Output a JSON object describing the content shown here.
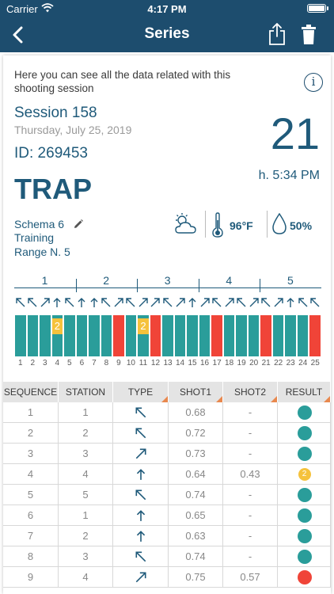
{
  "status_bar": {
    "carrier": "Carrier",
    "time": "4:17 PM"
  },
  "nav": {
    "title": "Series",
    "back_icon": "chevron-left-icon",
    "share_icon": "share-icon",
    "trash_icon": "trash-icon"
  },
  "intro": "Here you can see all the data related with this shooting session",
  "session": {
    "name": "Session 158",
    "date": "Thursday, July 25, 2019",
    "id": "ID: 269453",
    "number": "21",
    "hour": "h. 5:34 PM",
    "discipline": "TRAP",
    "schema": "Schema 6",
    "type": "Training",
    "range": "Range N. 5"
  },
  "weather": {
    "icon": "partly-cloudy-icon",
    "temperature": "96°F",
    "humidity": "50%"
  },
  "stations": [
    "1",
    "2",
    "3",
    "4",
    "5"
  ],
  "shot_numbers": [
    "1",
    "2",
    "3",
    "4",
    "5",
    "6",
    "7",
    "8",
    "9",
    "10",
    "11",
    "12",
    "13",
    "14",
    "15",
    "16",
    "17",
    "18",
    "19",
    "20",
    "21",
    "22",
    "23",
    "24",
    "25"
  ],
  "shots": [
    {
      "dir": "up-left",
      "result": "hit"
    },
    {
      "dir": "up-left",
      "result": "hit"
    },
    {
      "dir": "up-right",
      "result": "hit"
    },
    {
      "dir": "up",
      "result": "second",
      "badge": "2"
    },
    {
      "dir": "up-left",
      "result": "hit"
    },
    {
      "dir": "up",
      "result": "hit"
    },
    {
      "dir": "up",
      "result": "hit"
    },
    {
      "dir": "up-left",
      "result": "hit"
    },
    {
      "dir": "up-right",
      "result": "miss"
    },
    {
      "dir": "up-left",
      "result": "hit"
    },
    {
      "dir": "up-right",
      "result": "second",
      "badge": "2"
    },
    {
      "dir": "up-right",
      "result": "miss"
    },
    {
      "dir": "up-left",
      "result": "hit"
    },
    {
      "dir": "up-right",
      "result": "hit"
    },
    {
      "dir": "up",
      "result": "hit"
    },
    {
      "dir": "up-right",
      "result": "hit"
    },
    {
      "dir": "up-left",
      "result": "miss"
    },
    {
      "dir": "up-right",
      "result": "hit"
    },
    {
      "dir": "up-left",
      "result": "hit"
    },
    {
      "dir": "up-right",
      "result": "hit"
    },
    {
      "dir": "up-left",
      "result": "miss"
    },
    {
      "dir": "up-right",
      "result": "hit"
    },
    {
      "dir": "up",
      "result": "hit"
    },
    {
      "dir": "up-left",
      "result": "hit"
    },
    {
      "dir": "up-left",
      "result": "miss"
    }
  ],
  "table": {
    "headers": [
      "SEQUENCE",
      "STATION",
      "TYPE",
      "SHOT1",
      "SHOT2",
      "RESULT"
    ],
    "rows": [
      {
        "seq": "1",
        "station": "1",
        "type": "up-left",
        "shot1": "0.68",
        "shot2": "-",
        "result": "hit"
      },
      {
        "seq": "2",
        "station": "2",
        "type": "up-left",
        "shot1": "0.72",
        "shot2": "-",
        "result": "hit"
      },
      {
        "seq": "3",
        "station": "3",
        "type": "up-right",
        "shot1": "0.73",
        "shot2": "-",
        "result": "hit"
      },
      {
        "seq": "4",
        "station": "4",
        "type": "up",
        "shot1": "0.64",
        "shot2": "0.43",
        "result": "second",
        "badge": "2"
      },
      {
        "seq": "5",
        "station": "5",
        "type": "up-left",
        "shot1": "0.74",
        "shot2": "-",
        "result": "hit"
      },
      {
        "seq": "6",
        "station": "1",
        "type": "up",
        "shot1": "0.65",
        "shot2": "-",
        "result": "hit"
      },
      {
        "seq": "7",
        "station": "2",
        "type": "up",
        "shot1": "0.63",
        "shot2": "-",
        "result": "hit"
      },
      {
        "seq": "8",
        "station": "3",
        "type": "up-left",
        "shot1": "0.74",
        "shot2": "-",
        "result": "hit"
      },
      {
        "seq": "9",
        "station": "4",
        "type": "up-right",
        "shot1": "0.75",
        "shot2": "0.57",
        "result": "miss"
      }
    ]
  },
  "colors": {
    "header": "#1d4d6e",
    "text": "#1f5a7a",
    "hit": "#2a9d9a",
    "second": "#f5c23c",
    "miss": "#f04438"
  }
}
